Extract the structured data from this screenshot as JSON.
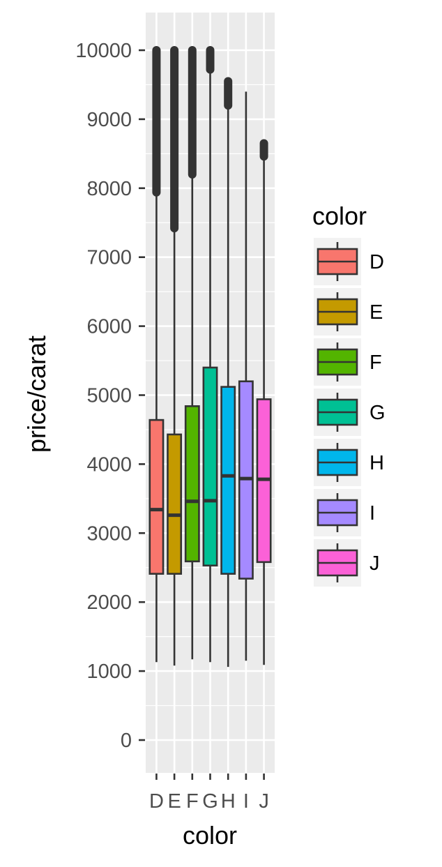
{
  "chart_data": {
    "type": "box",
    "xlabel": "color",
    "ylabel": "price/carat",
    "ylim": [
      -480,
      10640
    ],
    "yticks": [
      0,
      1000,
      2000,
      3000,
      4000,
      5000,
      6000,
      7000,
      8000,
      9000,
      10000
    ],
    "ytick_labels": [
      "0",
      "1000",
      "2000",
      "3000",
      "4000",
      "5000",
      "6000",
      "7000",
      "8000",
      "9000",
      "10000"
    ],
    "categories": [
      "D",
      "E",
      "F",
      "G",
      "H",
      "I",
      "J"
    ],
    "boxes": [
      {
        "category": "D",
        "whisker_low": 1130,
        "q1": 2410,
        "median": 3340,
        "q3": 4640,
        "whisker_high": 7940,
        "outliers_range": [
          7940,
          10000
        ],
        "fill": "#F8766D"
      },
      {
        "category": "E",
        "whisker_low": 1080,
        "q1": 2410,
        "median": 3260,
        "q3": 4430,
        "whisker_high": 7420,
        "outliers_range": [
          7420,
          10000
        ],
        "fill": "#C49A00"
      },
      {
        "category": "F",
        "whisker_low": 1170,
        "q1": 2590,
        "median": 3460,
        "q3": 4840,
        "whisker_high": 8200,
        "outliers_range": [
          8200,
          10000
        ],
        "fill": "#53B400"
      },
      {
        "category": "G",
        "whisker_low": 1130,
        "q1": 2530,
        "median": 3470,
        "q3": 5400,
        "whisker_high": 9720,
        "outliers_range": [
          9720,
          10000
        ],
        "fill": "#00C094"
      },
      {
        "category": "H",
        "whisker_low": 1060,
        "q1": 2410,
        "median": 3830,
        "q3": 5120,
        "whisker_high": 9200,
        "outliers_range": [
          9200,
          9550
        ],
        "fill": "#00B6EB"
      },
      {
        "category": "I",
        "whisker_low": 1150,
        "q1": 2340,
        "median": 3790,
        "q3": 5200,
        "whisker_high": 9400,
        "outliers_range": null,
        "fill": "#A58AFF"
      },
      {
        "category": "J",
        "whisker_low": 1090,
        "q1": 2580,
        "median": 3780,
        "q3": 4940,
        "whisker_high": 8460,
        "outliers_range": [
          8460,
          8650
        ],
        "fill": "#FB61D7"
      }
    ],
    "legend": {
      "title": "color",
      "placement": "right",
      "entries": [
        {
          "label": "D",
          "color": "#F8766D"
        },
        {
          "label": "E",
          "color": "#C49A00"
        },
        {
          "label": "F",
          "color": "#53B400"
        },
        {
          "label": "G",
          "color": "#00C094"
        },
        {
          "label": "H",
          "color": "#00B6EB"
        },
        {
          "label": "I",
          "color": "#A58AFF"
        },
        {
          "label": "J",
          "color": "#FB61D7"
        }
      ]
    },
    "grid": true,
    "panel_background": "#EBEBEB"
  }
}
